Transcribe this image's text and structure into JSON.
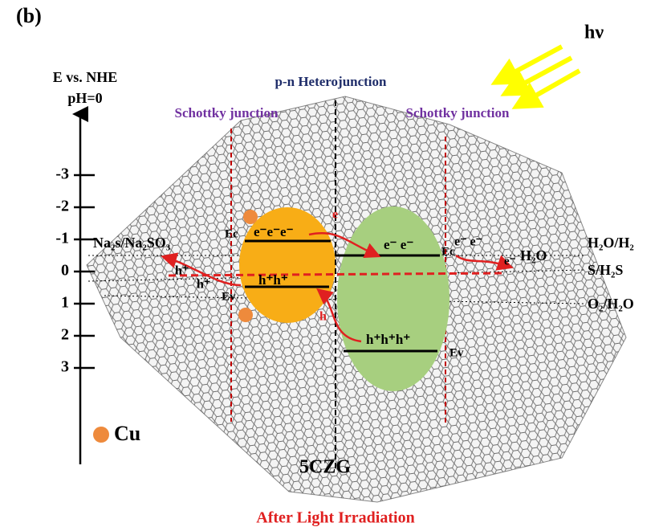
{
  "panel_label": "(b)",
  "light": "hν",
  "axis": {
    "title": "E vs. NHE",
    "subtitle": "pH=0",
    "ticks": [
      "-3",
      "-2",
      "-1",
      "0",
      "1",
      "2",
      "3"
    ]
  },
  "junctions": {
    "center": "p-n Heterojunction",
    "left": "Schottky junction",
    "right": "Schottky junction"
  },
  "potentials": {
    "left": "Na₂s/Na₂SO₃",
    "h2o_h2": "H₂O/H₂",
    "s_h2s": "S/H₂S",
    "o2_h2o": "O₂/H₂O"
  },
  "orange": {
    "ec": "Ec",
    "ev": "Ev",
    "electrons": "e⁻e⁻e⁻",
    "holes": "h⁺h⁺",
    "hole_left": "h⁺",
    "hole_left2": "h⁺",
    "e_transfer": "e"
  },
  "green": {
    "electrons": "e⁻   e⁻",
    "holes": "h⁺h⁺h⁺",
    "ev": "Ev",
    "ec": "Ec",
    "hole_transfer": "h"
  },
  "right": {
    "electrons": "e⁻  e⁻",
    "e_product": "e⁻",
    "product": "H₂O"
  },
  "legend": {
    "cu": "Cu"
  },
  "sample": "5CZG",
  "caption": "After Light Irradiation"
}
